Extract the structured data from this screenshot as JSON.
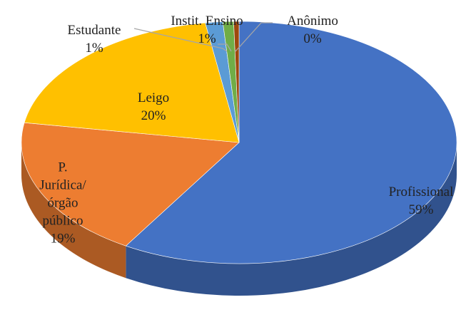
{
  "chart_data": {
    "type": "pie",
    "categories": [
      "Profissional",
      "P. Jurídica/órgão público",
      "Leigo",
      "Estudante",
      "Instit. Ensino",
      "Anônimo"
    ],
    "values": [
      59,
      19,
      20,
      1.3,
      0.8,
      0.4
    ],
    "value_labels": [
      "59%",
      "19%",
      "20%",
      "1%",
      "1%",
      "0%"
    ],
    "colors": [
      "#4472c4",
      "#ed7d31",
      "#ffc000",
      "#5b9bd5",
      "#70ad47",
      "#9e480e"
    ]
  }
}
